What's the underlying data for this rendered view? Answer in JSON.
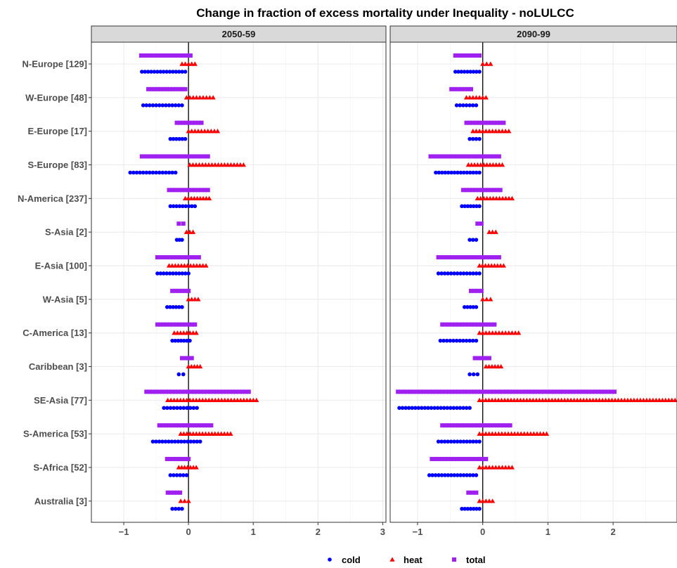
{
  "chart_data": {
    "type": "scatter",
    "title": "Change in fraction of excess mortality under Inequality - noLULCC",
    "xlabel": "",
    "ylabel": "",
    "grid": true,
    "legend_position": "bottom",
    "categories": [
      "N-Europe [129]",
      "W-Europe [48]",
      "E-Europe [17]",
      "S-Europe [83]",
      "N-America [237]",
      "S-Asia [2]",
      "E-Asia [100]",
      "W-Asia [5]",
      "C-America [13]",
      "Caribbean [3]",
      "SE-Asia [77]",
      "S-America [53]",
      "S-Africa [52]",
      "Australia [3]"
    ],
    "x_ticks": [
      -1,
      0,
      1,
      2,
      3
    ],
    "legend": [
      {
        "name": "cold",
        "shape": "circle",
        "color": "#0000ff"
      },
      {
        "name": "heat",
        "shape": "triangle",
        "color": "#ff0000"
      },
      {
        "name": "total",
        "shape": "square",
        "color": "#a020f0"
      }
    ],
    "panels": [
      {
        "label": "2050-59",
        "xlim": [
          -1.5,
          3.05
        ],
        "ranges": {
          "cold": [
            [
              -0.72,
              -0.05
            ],
            [
              -0.7,
              -0.1
            ],
            [
              -0.28,
              -0.05
            ],
            [
              -0.9,
              -0.2
            ],
            [
              -0.28,
              0.1
            ],
            [
              -0.18,
              -0.1
            ],
            [
              -0.48,
              0.0
            ],
            [
              -0.33,
              -0.1
            ],
            [
              -0.25,
              0.02
            ],
            [
              -0.15,
              -0.08
            ],
            [
              -0.38,
              0.13
            ],
            [
              -0.55,
              0.18
            ],
            [
              -0.28,
              -0.03
            ],
            [
              -0.25,
              -0.1
            ]
          ],
          "heat": [
            [
              -0.1,
              0.1
            ],
            [
              -0.03,
              0.38
            ],
            [
              0.0,
              0.45
            ],
            [
              0.02,
              0.85
            ],
            [
              -0.05,
              0.32
            ],
            [
              -0.03,
              0.07
            ],
            [
              -0.3,
              0.27
            ],
            [
              0.0,
              0.15
            ],
            [
              -0.22,
              0.12
            ],
            [
              0.0,
              0.18
            ],
            [
              -0.32,
              1.05
            ],
            [
              -0.12,
              0.65
            ],
            [
              -0.15,
              0.12
            ],
            [
              -0.12,
              0.0
            ]
          ],
          "total": [
            [
              -0.73,
              0.03
            ],
            [
              -0.62,
              -0.05
            ],
            [
              -0.18,
              0.2
            ],
            [
              -0.72,
              0.3
            ],
            [
              -0.3,
              0.3
            ],
            [
              -0.15,
              -0.08
            ],
            [
              -0.48,
              0.16
            ],
            [
              -0.25,
              0.0
            ],
            [
              -0.48,
              0.1
            ],
            [
              -0.1,
              0.05
            ],
            [
              -0.65,
              0.93
            ],
            [
              -0.45,
              0.35
            ],
            [
              -0.33,
              0.0
            ],
            [
              -0.32,
              -0.13
            ]
          ]
        }
      },
      {
        "label": "2090-99",
        "xlim": [
          -1.42,
          2.98
        ],
        "ranges": {
          "cold": [
            [
              -0.42,
              -0.05
            ],
            [
              -0.4,
              -0.1
            ],
            [
              -0.2,
              -0.05
            ],
            [
              -0.72,
              -0.05
            ],
            [
              -0.32,
              -0.05
            ],
            [
              -0.2,
              -0.1
            ],
            [
              -0.68,
              -0.05
            ],
            [
              -0.28,
              -0.1
            ],
            [
              -0.65,
              -0.1
            ],
            [
              -0.2,
              -0.08
            ],
            [
              -1.28,
              -0.2
            ],
            [
              -0.68,
              -0.05
            ],
            [
              -0.82,
              -0.1
            ],
            [
              -0.32,
              -0.05
            ]
          ],
          "heat": [
            [
              0.0,
              0.12
            ],
            [
              -0.25,
              0.05
            ],
            [
              -0.15,
              0.4
            ],
            [
              -0.22,
              0.3
            ],
            [
              -0.08,
              0.45
            ],
            [
              0.1,
              0.2
            ],
            [
              -0.05,
              0.32
            ],
            [
              0.0,
              0.12
            ],
            [
              -0.05,
              0.55
            ],
            [
              0.05,
              0.28
            ],
            [
              -0.05,
              2.95
            ],
            [
              -0.05,
              0.98
            ],
            [
              -0.05,
              0.45
            ],
            [
              -0.05,
              0.15
            ]
          ],
          "total": [
            [
              -0.42,
              -0.05
            ],
            [
              -0.48,
              -0.18
            ],
            [
              -0.25,
              0.32
            ],
            [
              -0.8,
              0.25
            ],
            [
              -0.3,
              0.27
            ],
            [
              -0.08,
              -0.02
            ],
            [
              -0.68,
              0.25
            ],
            [
              -0.18,
              -0.02
            ],
            [
              -0.62,
              0.18
            ],
            [
              -0.12,
              0.1
            ],
            [
              -1.3,
              2.02
            ],
            [
              -0.62,
              0.42
            ],
            [
              -0.78,
              0.05
            ],
            [
              -0.22,
              -0.1
            ]
          ]
        }
      }
    ]
  }
}
